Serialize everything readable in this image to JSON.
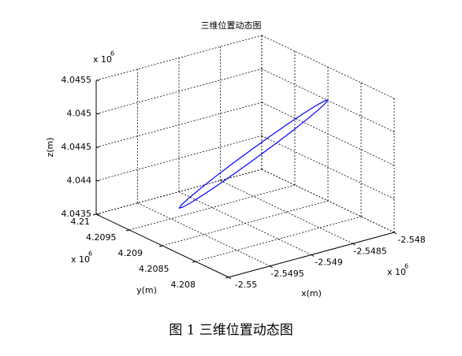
{
  "chart_data": {
    "type": "line3d",
    "title": "三维位置动态图",
    "xlabel": "x(m)",
    "ylabel": "y(m)",
    "zlabel": "z(m)",
    "exponent_labels": {
      "x": {
        "base": "x 10",
        "power": "6"
      },
      "y": {
        "base": "x 10",
        "power": "6"
      },
      "z": {
        "base": "x 10",
        "power": "6"
      }
    },
    "xlim": [
      -2.55,
      -2.548
    ],
    "xticks": [
      -2.55,
      -2.5495,
      -2.549,
      -2.5485,
      -2.548
    ],
    "ylim": [
      4.208,
      4.21
    ],
    "yticks": [
      4.208,
      4.2085,
      4.209,
      4.2095,
      4.21
    ],
    "zlim": [
      4.0435,
      4.0455
    ],
    "zticks": [
      4.0435,
      4.044,
      4.0445,
      4.045,
      4.0455
    ],
    "grid": true,
    "series": [
      {
        "color": "#0000ff",
        "x": [
          -2.548005,
          -2.548035,
          -2.548125,
          -2.548267,
          -2.548452,
          -2.548668,
          -2.5489,
          -2.549132,
          -2.549348,
          -2.549533,
          -2.549675,
          -2.549765,
          -2.549795,
          -2.549765,
          -2.549675,
          -2.549533,
          -2.549348,
          -2.549132,
          -2.5489,
          -2.548668,
          -2.548452,
          -2.548267,
          -2.548125,
          -2.548035,
          -2.548005
        ],
        "y": [
          4.209,
          4.20899,
          4.20898,
          4.208972,
          4.208965,
          4.208961,
          4.20896,
          4.208961,
          4.208965,
          4.208972,
          4.20898,
          4.20899,
          4.209,
          4.20901,
          4.20902,
          4.209028,
          4.209035,
          4.209039,
          4.20904,
          4.209039,
          4.209035,
          4.209028,
          4.20902,
          4.20901,
          4.209
        ],
        "z": [
          4.045006,
          4.044978,
          4.044918,
          4.04483,
          4.044718,
          4.044592,
          4.04446,
          4.04433,
          4.044212,
          4.044114,
          4.044042,
          4.044001,
          4.043994,
          4.044022,
          4.044082,
          4.04417,
          4.044282,
          4.044408,
          4.04454,
          4.04467,
          4.044788,
          4.044886,
          4.044958,
          4.044999,
          4.045006
        ]
      }
    ]
  },
  "caption": "图 1  三维位置动态图"
}
